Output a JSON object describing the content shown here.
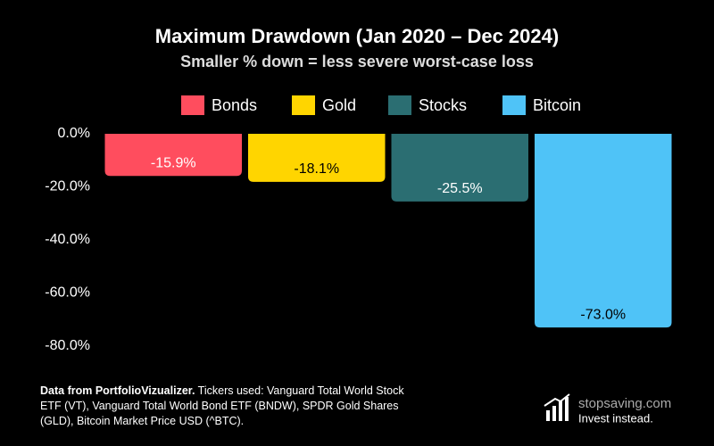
{
  "chart_data": {
    "type": "bar",
    "title": "Maximum Drawdown (Jan 2020 – Dec 2024)",
    "subtitle": "Smaller % down = less severe worst-case loss",
    "categories": [
      "Bonds",
      "Gold",
      "Stocks",
      "Bitcoin"
    ],
    "values": [
      -15.9,
      -18.1,
      -25.5,
      -73.0
    ],
    "value_labels": [
      "-15.9%",
      "-18.1%",
      "-25.5%",
      "-73.0%"
    ],
    "colors": [
      "#ff4d5e",
      "#ffd500",
      "#2b6e72",
      "#4fc3f7"
    ],
    "ylim": [
      -80,
      0
    ],
    "yticks": [
      {
        "value": 0,
        "label": "0.0%"
      },
      {
        "value": -20,
        "label": "-20.0%"
      },
      {
        "value": -40,
        "label": "-40.0%"
      },
      {
        "value": -60,
        "label": "-60.0%"
      },
      {
        "value": -80,
        "label": "-80.0%"
      }
    ],
    "grid": false,
    "legend": "top"
  },
  "source": {
    "label": "Data from PortfolioVizualizer.",
    "text": "Tickers used: Vanguard Total World Stock ETF (VT), Vanguard Total World Bond ETF (BNDW), SPDR Gold Shares (GLD), Bitcoin Market Price USD (^BTC)."
  },
  "brand": {
    "name": "stopsaving.com",
    "tagline": "Invest instead."
  }
}
